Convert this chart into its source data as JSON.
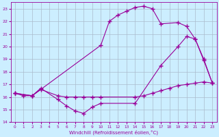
{
  "xlabel": "Windchill (Refroidissement éolien,°C)",
  "background_color": "#cceeff",
  "grid_color": "#aabbcc",
  "line_color": "#990099",
  "xlim": [
    -0.5,
    23.5
  ],
  "ylim": [
    14,
    23.5
  ],
  "yticks": [
    14,
    15,
    16,
    17,
    18,
    19,
    20,
    21,
    22,
    23
  ],
  "xticks": [
    0,
    1,
    2,
    3,
    4,
    5,
    6,
    7,
    8,
    9,
    10,
    11,
    12,
    13,
    14,
    15,
    16,
    17,
    18,
    19,
    20,
    21,
    22,
    23
  ],
  "line1_x": [
    0,
    1,
    2,
    3,
    5,
    6,
    7,
    8,
    9,
    10,
    14,
    15,
    16,
    17,
    18,
    19,
    20,
    21,
    22,
    23
  ],
  "line1_y": [
    16.3,
    16.1,
    16.1,
    16.6,
    16.1,
    16.0,
    16.0,
    16.0,
    16.0,
    16.0,
    16.0,
    16.1,
    16.3,
    16.5,
    16.7,
    16.9,
    17.0,
    17.1,
    17.2,
    17.1
  ],
  "line2_x": [
    0,
    2,
    3,
    5,
    6,
    7,
    8,
    9,
    10,
    14,
    17,
    19,
    20,
    21,
    22,
    23
  ],
  "line2_y": [
    16.3,
    16.1,
    16.7,
    15.8,
    15.3,
    14.9,
    14.7,
    15.2,
    15.5,
    15.5,
    18.5,
    20.0,
    20.8,
    20.6,
    19.0,
    17.1
  ],
  "line3_x": [
    0,
    2,
    10,
    11,
    12,
    13,
    14,
    15,
    16,
    17,
    19,
    20,
    21,
    22,
    23
  ],
  "line3_y": [
    16.3,
    16.1,
    20.1,
    22.0,
    22.5,
    22.8,
    23.1,
    23.2,
    23.0,
    21.8,
    21.9,
    21.6,
    20.6,
    18.9,
    17.1
  ]
}
